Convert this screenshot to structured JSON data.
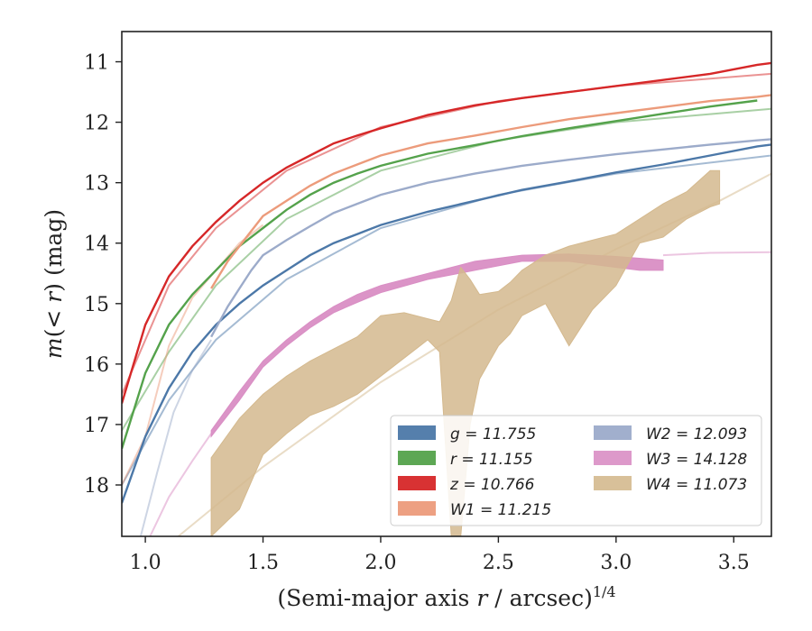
{
  "chart_data": {
    "type": "line",
    "xlabel": "(Semi-major axis r / arcsec)¹ᐟ⁴",
    "xlabel_parts": {
      "pre": "(Semi-major axis ",
      "var": "r",
      "post": " / arcsec)",
      "sup": "1/4"
    },
    "ylabel_parts": {
      "m": "m",
      "mid": "(< ",
      "r": "r",
      "post": ") (mag)"
    },
    "xlim": [
      0.9,
      3.66
    ],
    "ylim": [
      18.85,
      10.5
    ],
    "y_inverted": true,
    "xticks": [
      1.0,
      1.5,
      2.0,
      2.5,
      3.0,
      3.5
    ],
    "xtick_labels": [
      "1.0",
      "1.5",
      "2.0",
      "2.5",
      "3.0",
      "3.5"
    ],
    "yticks": [
      11,
      12,
      13,
      14,
      15,
      16,
      17,
      18
    ],
    "ytick_labels": [
      "11",
      "12",
      "13",
      "14",
      "15",
      "16",
      "17",
      "18"
    ],
    "grid": false,
    "legend_position": "lower-right",
    "legend_columns": 2,
    "series": [
      {
        "key": "g",
        "legend": "g = 11.755",
        "color": "#4c78a8",
        "kind": "line",
        "x": [
          0.9,
          1.0,
          1.1,
          1.2,
          1.3,
          1.4,
          1.5,
          1.6,
          1.7,
          1.8,
          1.9,
          2.0,
          2.2,
          2.4,
          2.6,
          2.8,
          3.0,
          3.2,
          3.4,
          3.6,
          3.66
        ],
        "y": [
          18.3,
          17.2,
          16.4,
          15.8,
          15.35,
          15.0,
          14.7,
          14.45,
          14.2,
          14.0,
          13.85,
          13.7,
          13.48,
          13.3,
          13.12,
          12.98,
          12.83,
          12.7,
          12.55,
          12.4,
          12.37
        ]
      },
      {
        "key": "r",
        "legend": "r = 11.155",
        "color": "#54a24b",
        "kind": "line",
        "x": [
          0.9,
          1.0,
          1.1,
          1.2,
          1.3,
          1.4,
          1.5,
          1.6,
          1.7,
          1.8,
          1.9,
          2.0,
          2.2,
          2.4,
          2.6,
          2.8,
          3.0,
          3.2,
          3.4,
          3.6
        ],
        "y": [
          17.4,
          16.15,
          15.35,
          14.85,
          14.45,
          14.05,
          13.75,
          13.45,
          13.2,
          13.0,
          12.85,
          12.72,
          12.52,
          12.38,
          12.23,
          12.1,
          11.98,
          11.86,
          11.74,
          11.64
        ]
      },
      {
        "key": "z",
        "legend": "z = 10.766",
        "color": "#d62728",
        "kind": "line",
        "x": [
          0.9,
          1.0,
          1.1,
          1.2,
          1.3,
          1.4,
          1.5,
          1.6,
          1.7,
          1.8,
          1.9,
          2.0,
          2.2,
          2.4,
          2.6,
          2.8,
          3.0,
          3.2,
          3.4,
          3.6,
          3.66
        ],
        "y": [
          16.65,
          15.35,
          14.55,
          14.05,
          13.65,
          13.3,
          13.0,
          12.75,
          12.55,
          12.35,
          12.22,
          12.1,
          11.88,
          11.72,
          11.6,
          11.5,
          11.4,
          11.3,
          11.2,
          11.05,
          11.02
        ]
      },
      {
        "key": "W1",
        "legend": "W1 = 11.215",
        "color": "#ec9b7b",
        "kind": "line",
        "x": [
          1.28,
          1.35,
          1.4,
          1.45,
          1.5,
          1.6,
          1.7,
          1.8,
          1.9,
          2.0,
          2.2,
          2.4,
          2.6,
          2.8,
          3.0,
          3.2,
          3.4,
          3.6,
          3.66
        ],
        "y": [
          14.75,
          14.3,
          14.05,
          13.8,
          13.55,
          13.3,
          13.05,
          12.85,
          12.7,
          12.55,
          12.35,
          12.22,
          12.08,
          11.95,
          11.85,
          11.75,
          11.65,
          11.58,
          11.55
        ]
      },
      {
        "key": "W2",
        "legend": "W2 = 12.093",
        "color": "#9cabca",
        "kind": "line",
        "x": [
          1.28,
          1.35,
          1.4,
          1.45,
          1.5,
          1.6,
          1.7,
          1.8,
          1.9,
          2.0,
          2.2,
          2.4,
          2.6,
          2.8,
          3.0,
          3.2,
          3.4,
          3.6,
          3.66
        ],
        "y": [
          15.55,
          15.05,
          14.75,
          14.45,
          14.2,
          13.95,
          13.72,
          13.5,
          13.35,
          13.2,
          13.0,
          12.85,
          12.72,
          12.62,
          12.53,
          12.45,
          12.37,
          12.3,
          12.28
        ]
      },
      {
        "key": "W3",
        "legend": "W3 = 14.128",
        "color": "#d98ec4",
        "kind": "band",
        "x": [
          1.28,
          1.4,
          1.5,
          1.6,
          1.7,
          1.8,
          1.9,
          2.0,
          2.2,
          2.4,
          2.6,
          2.8,
          3.0,
          3.1,
          3.2
        ],
        "y_top": [
          17.1,
          16.45,
          15.95,
          15.6,
          15.3,
          15.05,
          14.85,
          14.7,
          14.5,
          14.3,
          14.2,
          14.18,
          14.22,
          14.25,
          14.28
        ],
        "y_bottom": [
          17.2,
          16.6,
          16.05,
          15.7,
          15.4,
          15.15,
          14.98,
          14.82,
          14.6,
          14.45,
          14.3,
          14.3,
          14.4,
          14.45,
          14.45
        ]
      },
      {
        "key": "W4",
        "legend": "W4 = 11.073",
        "color": "#d4b98e",
        "kind": "band",
        "x": [
          1.28,
          1.4,
          1.5,
          1.6,
          1.7,
          1.8,
          1.9,
          2.0,
          2.1,
          2.2,
          2.25,
          2.3,
          2.34,
          2.38,
          2.42,
          2.5,
          2.55,
          2.6,
          2.7,
          2.8,
          2.9,
          3.0,
          3.1,
          3.2,
          3.3,
          3.4,
          3.44
        ],
        "y_top": [
          17.55,
          16.9,
          16.5,
          16.2,
          15.95,
          15.75,
          15.55,
          15.2,
          15.15,
          15.25,
          15.3,
          14.95,
          14.4,
          14.6,
          14.85,
          14.8,
          14.65,
          14.45,
          14.2,
          14.05,
          13.95,
          13.85,
          13.6,
          13.35,
          13.15,
          12.8,
          12.8
        ],
        "y_bottom": [
          18.85,
          18.4,
          17.5,
          17.15,
          16.85,
          16.7,
          16.5,
          16.2,
          15.9,
          15.6,
          15.8,
          18.85,
          18.85,
          17.0,
          16.25,
          15.7,
          15.5,
          15.2,
          15.0,
          15.7,
          15.1,
          14.7,
          14.0,
          13.9,
          13.6,
          13.4,
          13.35
        ]
      }
    ],
    "extrapolated_lines": [
      {
        "key": "g",
        "color": "#4c78a8",
        "x": [
          0.9,
          1.1,
          1.3,
          1.6,
          2.0,
          2.5,
          3.0,
          3.66
        ],
        "y": [
          18.0,
          16.6,
          15.6,
          14.6,
          13.75,
          13.2,
          12.85,
          12.55
        ]
      },
      {
        "key": "r",
        "color": "#54a24b",
        "x": [
          0.9,
          1.1,
          1.3,
          1.6,
          2.0,
          2.5,
          3.0,
          3.66
        ],
        "y": [
          17.1,
          15.8,
          14.7,
          13.6,
          12.8,
          12.3,
          12.0,
          11.78
        ]
      },
      {
        "key": "z",
        "color": "#d62728",
        "x": [
          0.9,
          1.1,
          1.3,
          1.6,
          2.0,
          2.5,
          3.0,
          3.66
        ],
        "y": [
          16.5,
          14.7,
          13.75,
          12.8,
          12.08,
          11.65,
          11.4,
          11.2
        ]
      },
      {
        "key": "W1",
        "color": "#ec9b7b",
        "x": [
          0.9,
          1.0,
          1.1,
          1.2,
          1.3,
          1.4,
          1.5
        ],
        "y": [
          18.0,
          17.2,
          15.7,
          14.9,
          14.45,
          14.0,
          13.7
        ]
      },
      {
        "key": "W2",
        "color": "#9cabca",
        "x": [
          0.98,
          1.05,
          1.12,
          1.2,
          1.28
        ],
        "y": [
          18.85,
          17.8,
          16.8,
          16.1,
          15.6
        ]
      },
      {
        "key": "W3",
        "color": "#d98ec4",
        "x": [
          1.02,
          1.1,
          1.2,
          1.28
        ],
        "y": [
          18.85,
          18.2,
          17.6,
          17.15
        ]
      },
      {
        "key": "W3b",
        "color": "#d98ec4",
        "x": [
          3.2,
          3.4,
          3.66
        ],
        "y": [
          14.2,
          14.16,
          14.15
        ]
      },
      {
        "key": "W4",
        "color": "#d4b98e",
        "x": [
          1.14,
          1.5,
          2.0,
          2.5,
          3.0,
          3.44,
          3.66
        ],
        "y": [
          18.85,
          17.7,
          16.3,
          15.1,
          14.1,
          13.3,
          12.85
        ]
      }
    ]
  }
}
